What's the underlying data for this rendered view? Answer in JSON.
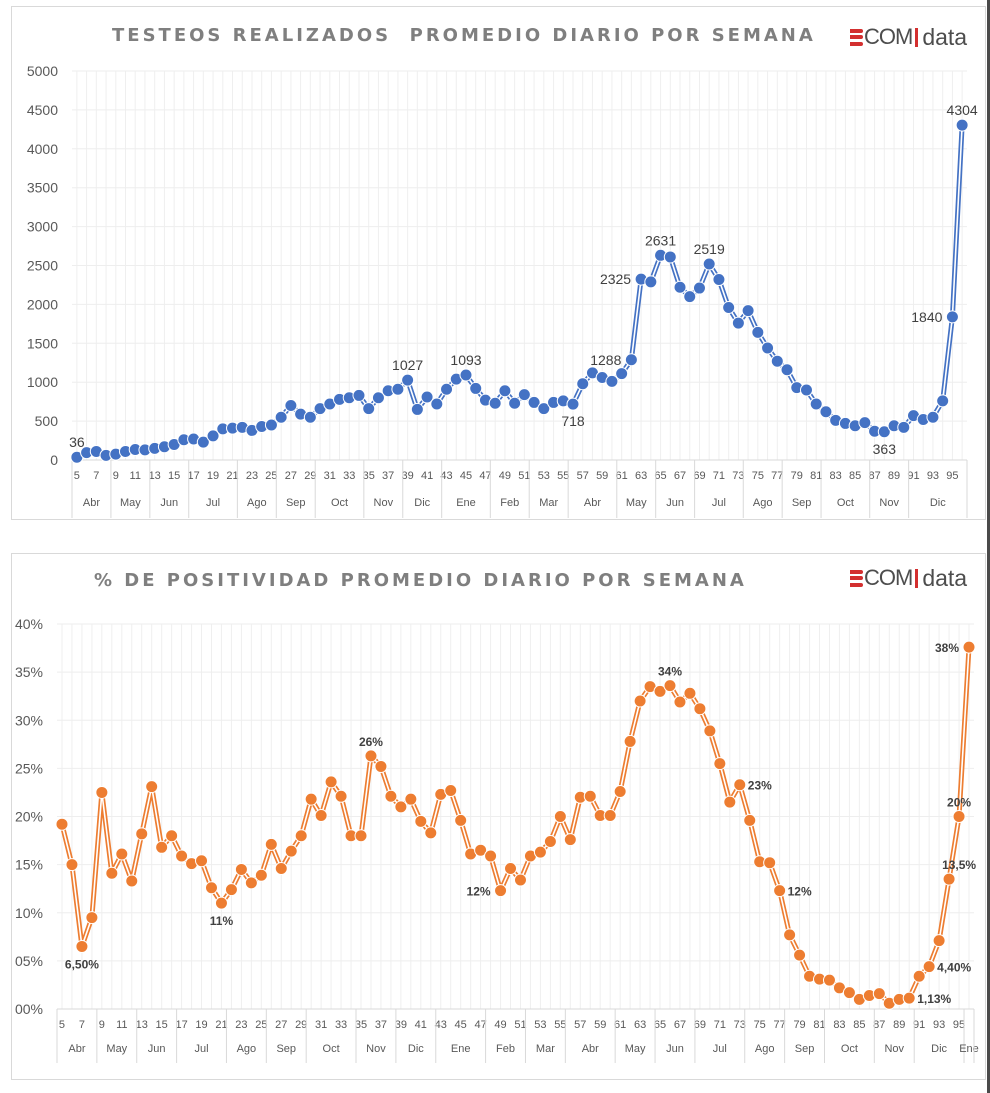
{
  "logo": {
    "text_com": "COM",
    "text_data": "data",
    "brand_color": "#d32f2f"
  },
  "chart_data": [
    {
      "type": "line",
      "title": "TESTEOS REALIZADOS  PROMEDIO DIARIO POR SEMANA",
      "xlabel": "",
      "ylabel": "",
      "ylim": [
        0,
        5000
      ],
      "yticks": [
        0,
        500,
        1000,
        1500,
        2000,
        2500,
        3000,
        3500,
        4000,
        4500,
        5000
      ],
      "ytick_labels": [
        "0",
        "500",
        "1000",
        "1500",
        "2000",
        "2500",
        "3000",
        "3500",
        "4000",
        "4500",
        "5000"
      ],
      "grid": true,
      "color": "#4472c4",
      "x_range": [
        4.5,
        96.5
      ],
      "x_tick_labels": [
        "5",
        "7",
        "9",
        "11",
        "13",
        "15",
        "17",
        "19",
        "21",
        "23",
        "25",
        "27",
        "29",
        "31",
        "33",
        "35",
        "37",
        "39",
        "41",
        "43",
        "45",
        "47",
        "49",
        "51",
        "53",
        "55",
        "57",
        "59",
        "61",
        "63",
        "65",
        "67",
        "69",
        "71",
        "73",
        "75",
        "77",
        "79",
        "81",
        "83",
        "85",
        "87",
        "89",
        "91",
        "93",
        "95"
      ],
      "x_tick_weeks": [
        5,
        7,
        9,
        11,
        13,
        15,
        17,
        19,
        21,
        23,
        25,
        27,
        29,
        31,
        33,
        35,
        37,
        39,
        41,
        43,
        45,
        47,
        49,
        51,
        53,
        55,
        57,
        59,
        61,
        63,
        65,
        67,
        69,
        71,
        73,
        75,
        77,
        79,
        81,
        83,
        85,
        87,
        89,
        91,
        93,
        95
      ],
      "months": [
        {
          "label": "Abr",
          "start": 4.5,
          "end": 8.5
        },
        {
          "label": "May",
          "start": 8.5,
          "end": 12.5
        },
        {
          "label": "Jun",
          "start": 12.5,
          "end": 16.5
        },
        {
          "label": "Jul",
          "start": 16.5,
          "end": 21.5
        },
        {
          "label": "Ago",
          "start": 21.5,
          "end": 25.5
        },
        {
          "label": "Sep",
          "start": 25.5,
          "end": 29.5
        },
        {
          "label": "Oct",
          "start": 29.5,
          "end": 34.5
        },
        {
          "label": "Nov",
          "start": 34.5,
          "end": 38.5
        },
        {
          "label": "Dic",
          "start": 38.5,
          "end": 42.5
        },
        {
          "label": "Ene",
          "start": 42.5,
          "end": 47.5
        },
        {
          "label": "Feb",
          "start": 47.5,
          "end": 51.5
        },
        {
          "label": "Mar",
          "start": 51.5,
          "end": 55.5
        },
        {
          "label": "Abr",
          "start": 55.5,
          "end": 60.5
        },
        {
          "label": "May",
          "start": 60.5,
          "end": 64.5
        },
        {
          "label": "Jun",
          "start": 64.5,
          "end": 68.5
        },
        {
          "label": "Jul",
          "start": 68.5,
          "end": 73.5
        },
        {
          "label": "Ago",
          "start": 73.5,
          "end": 77.5
        },
        {
          "label": "Sep",
          "start": 77.5,
          "end": 81.5
        },
        {
          "label": "Oct",
          "start": 81.5,
          "end": 86.5
        },
        {
          "label": "Nov",
          "start": 86.5,
          "end": 90.5
        },
        {
          "label": "Dic",
          "start": 90.5,
          "end": 96.5
        }
      ],
      "x": [
        5,
        6,
        7,
        8,
        9,
        10,
        11,
        12,
        13,
        14,
        15,
        16,
        17,
        18,
        19,
        20,
        21,
        22,
        23,
        24,
        25,
        26,
        27,
        28,
        29,
        30,
        31,
        32,
        33,
        34,
        35,
        36,
        37,
        38,
        39,
        40,
        41,
        42,
        43,
        44,
        45,
        46,
        47,
        48,
        49,
        50,
        51,
        52,
        53,
        54,
        55,
        56,
        57,
        58,
        59,
        60,
        61,
        62,
        63,
        64,
        65,
        66,
        67,
        68,
        69,
        70,
        71,
        72,
        73,
        74,
        75,
        76,
        77,
        78,
        79,
        80,
        81,
        82,
        83,
        84,
        85,
        86,
        87,
        88,
        89,
        90,
        91,
        92,
        93,
        94,
        95,
        96
      ],
      "values": [
        36,
        95,
        110,
        60,
        75,
        110,
        135,
        130,
        150,
        170,
        200,
        260,
        270,
        230,
        310,
        400,
        410,
        420,
        380,
        430,
        450,
        550,
        700,
        590,
        550,
        660,
        720,
        780,
        800,
        830,
        660,
        800,
        890,
        910,
        1027,
        650,
        810,
        720,
        910,
        1040,
        1093,
        920,
        770,
        730,
        890,
        730,
        840,
        740,
        660,
        740,
        760,
        718,
        980,
        1120,
        1060,
        1010,
        1110,
        1288,
        2325,
        2290,
        2631,
        2610,
        2220,
        2100,
        2210,
        2519,
        2320,
        1960,
        1760,
        1920,
        1640,
        1440,
        1270,
        1160,
        930,
        900,
        720,
        620,
        510,
        470,
        440,
        480,
        370,
        363,
        440,
        420,
        570,
        520,
        550,
        760,
        1840,
        4304
      ],
      "annotations": [
        {
          "week": 5,
          "text": "36",
          "pos": "above"
        },
        {
          "week": 39,
          "text": "1027",
          "pos": "above"
        },
        {
          "week": 45,
          "text": "1093",
          "pos": "above"
        },
        {
          "week": 56,
          "text": "718",
          "pos": "below"
        },
        {
          "week": 62,
          "text": "1288",
          "pos": "left"
        },
        {
          "week": 63,
          "text": "2325",
          "pos": "left"
        },
        {
          "week": 65,
          "text": "2631",
          "pos": "above"
        },
        {
          "week": 70,
          "text": "2519",
          "pos": "above"
        },
        {
          "week": 88,
          "text": "363",
          "pos": "below"
        },
        {
          "week": 95,
          "text": "1840",
          "pos": "left"
        },
        {
          "week": 96,
          "text": "4304",
          "pos": "above"
        }
      ]
    },
    {
      "type": "line",
      "title": "% DE POSITIVIDAD PROMEDIO DIARIO POR SEMANA",
      "xlabel": "",
      "ylabel": "",
      "ylim": [
        0,
        40
      ],
      "yticks": [
        0,
        5,
        10,
        15,
        20,
        25,
        30,
        35,
        40
      ],
      "ytick_labels": [
        "00%",
        "05%",
        "10%",
        "15%",
        "20%",
        "25%",
        "30%",
        "35%",
        "40%"
      ],
      "grid": true,
      "color": "#ed7d31",
      "x_range": [
        4.5,
        96.5
      ],
      "x_tick_labels": [
        "5",
        "7",
        "9",
        "11",
        "13",
        "15",
        "17",
        "19",
        "21",
        "23",
        "25",
        "27",
        "29",
        "31",
        "33",
        "35",
        "37",
        "39",
        "41",
        "43",
        "45",
        "47",
        "49",
        "51",
        "53",
        "55",
        "57",
        "59",
        "61",
        "63",
        "65",
        "67",
        "69",
        "71",
        "73",
        "75",
        "77",
        "79",
        "81",
        "83",
        "85",
        "87",
        "89",
        "91",
        "93",
        "95"
      ],
      "x_tick_weeks": [
        5,
        7,
        9,
        11,
        13,
        15,
        17,
        19,
        21,
        23,
        25,
        27,
        29,
        31,
        33,
        35,
        37,
        39,
        41,
        43,
        45,
        47,
        49,
        51,
        53,
        55,
        57,
        59,
        61,
        63,
        65,
        67,
        69,
        71,
        73,
        75,
        77,
        79,
        81,
        83,
        85,
        87,
        89,
        91,
        93,
        95
      ],
      "months": [
        {
          "label": "Abr",
          "start": 4.5,
          "end": 8.5
        },
        {
          "label": "May",
          "start": 8.5,
          "end": 12.5
        },
        {
          "label": "Jun",
          "start": 12.5,
          "end": 16.5
        },
        {
          "label": "Jul",
          "start": 16.5,
          "end": 21.5
        },
        {
          "label": "Ago",
          "start": 21.5,
          "end": 25.5
        },
        {
          "label": "Sep",
          "start": 25.5,
          "end": 29.5
        },
        {
          "label": "Oct",
          "start": 29.5,
          "end": 34.5
        },
        {
          "label": "Nov",
          "start": 34.5,
          "end": 38.5
        },
        {
          "label": "Dic",
          "start": 38.5,
          "end": 42.5
        },
        {
          "label": "Ene",
          "start": 42.5,
          "end": 47.5
        },
        {
          "label": "Feb",
          "start": 47.5,
          "end": 51.5
        },
        {
          "label": "Mar",
          "start": 51.5,
          "end": 55.5
        },
        {
          "label": "Abr",
          "start": 55.5,
          "end": 60.5
        },
        {
          "label": "May",
          "start": 60.5,
          "end": 64.5
        },
        {
          "label": "Jun",
          "start": 64.5,
          "end": 68.5
        },
        {
          "label": "Jul",
          "start": 68.5,
          "end": 73.5
        },
        {
          "label": "Ago",
          "start": 73.5,
          "end": 77.5
        },
        {
          "label": "Sep",
          "start": 77.5,
          "end": 81.5
        },
        {
          "label": "Oct",
          "start": 81.5,
          "end": 86.5
        },
        {
          "label": "Nov",
          "start": 86.5,
          "end": 90.5
        },
        {
          "label": "Dic",
          "start": 90.5,
          "end": 95.5
        },
        {
          "label": "Ene",
          "start": 95.5,
          "end": 96.5
        }
      ],
      "x": [
        5,
        6,
        7,
        8,
        9,
        10,
        11,
        12,
        13,
        14,
        15,
        16,
        17,
        18,
        19,
        20,
        21,
        22,
        23,
        24,
        25,
        26,
        27,
        28,
        29,
        30,
        31,
        32,
        33,
        34,
        35,
        36,
        37,
        38,
        39,
        40,
        41,
        42,
        43,
        44,
        45,
        46,
        47,
        48,
        49,
        50,
        51,
        52,
        53,
        54,
        55,
        56,
        57,
        58,
        59,
        60,
        61,
        62,
        63,
        64,
        65,
        66,
        67,
        68,
        69,
        70,
        71,
        72,
        73,
        74,
        75,
        76,
        77,
        78,
        79,
        80,
        81,
        82,
        83,
        84,
        85,
        86,
        87,
        88,
        89,
        90,
        91,
        92,
        93,
        94,
        95,
        96
      ],
      "values": [
        19.2,
        15.0,
        6.5,
        9.5,
        22.5,
        14.1,
        16.1,
        13.3,
        18.2,
        23.1,
        16.8,
        18.0,
        15.9,
        15.1,
        15.4,
        12.6,
        11.0,
        12.4,
        14.5,
        13.1,
        13.9,
        17.1,
        14.6,
        16.4,
        18.0,
        21.8,
        20.1,
        23.6,
        22.1,
        18.0,
        18.0,
        26.3,
        25.2,
        22.1,
        21.0,
        21.8,
        19.5,
        18.3,
        22.3,
        22.7,
        19.6,
        16.1,
        16.5,
        15.9,
        12.3,
        14.6,
        13.4,
        15.9,
        16.3,
        17.4,
        20.0,
        17.6,
        22.0,
        22.1,
        20.1,
        20.1,
        22.6,
        27.8,
        32.0,
        33.5,
        33.0,
        33.6,
        31.9,
        32.8,
        31.2,
        28.9,
        25.5,
        21.5,
        23.3,
        19.6,
        15.3,
        15.2,
        12.3,
        7.7,
        5.6,
        3.4,
        3.1,
        3.0,
        2.2,
        1.7,
        1.0,
        1.4,
        1.6,
        0.6,
        1.0,
        1.13,
        3.4,
        4.4,
        7.1,
        13.5,
        20.0,
        37.6
      ],
      "annotations": [
        {
          "week": 7,
          "text": "6,50%",
          "pos": "below"
        },
        {
          "week": 21,
          "text": "11%",
          "pos": "below"
        },
        {
          "week": 36,
          "text": "26%",
          "pos": "above"
        },
        {
          "week": 49,
          "text": "12%",
          "pos": "left"
        },
        {
          "week": 66,
          "text": "34%",
          "pos": "above"
        },
        {
          "week": 73,
          "text": "23%",
          "pos": "right"
        },
        {
          "week": 77,
          "text": "12%",
          "pos": "right"
        },
        {
          "week": 90,
          "text": "1,13%",
          "pos": "right"
        },
        {
          "week": 92,
          "text": "4,40%",
          "pos": "right"
        },
        {
          "week": 94,
          "text": "13,5%",
          "pos": "aboveright"
        },
        {
          "week": 95,
          "text": "20%",
          "pos": "above"
        },
        {
          "week": 96,
          "text": "38%",
          "pos": "left"
        }
      ]
    }
  ]
}
